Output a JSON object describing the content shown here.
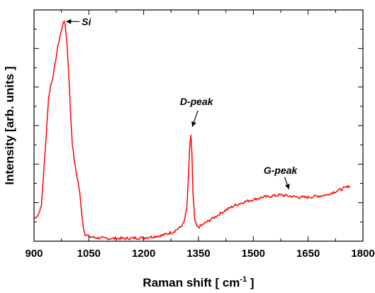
{
  "chart_data": {
    "type": "line",
    "xlabel": "Raman shift [ cm",
    "xlabel_sup": "-1",
    "xlabel_end": " ]",
    "ylabel": "Intensity [arb. units ]",
    "xlim": [
      900,
      1800
    ],
    "ylim": [
      0,
      1
    ],
    "x_ticks": [
      900,
      1050,
      1200,
      1350,
      1500,
      1650,
      1800
    ],
    "y_ticks_shown": false,
    "line_color": "#ff0000",
    "series": [
      {
        "x": [
          900,
          910,
          920,
          930,
          940,
          945,
          950,
          955,
          960,
          965,
          970,
          975,
          980,
          985,
          990,
          995,
          1000,
          1005,
          1010,
          1015,
          1020,
          1025,
          1030,
          1035,
          1040,
          1045,
          1050,
          1070,
          1100,
          1150,
          1200,
          1250,
          1280,
          1300,
          1310,
          1318,
          1322,
          1326,
          1329,
          1332,
          1335,
          1340,
          1345,
          1350,
          1360,
          1375,
          1400,
          1425,
          1450,
          1475,
          1500,
          1525,
          1550,
          1575,
          1600,
          1625,
          1650,
          1675,
          1700,
          1725,
          1750,
          1765
        ],
        "y": [
          0.1,
          0.11,
          0.15,
          0.38,
          0.62,
          0.67,
          0.7,
          0.74,
          0.79,
          0.84,
          0.88,
          0.91,
          0.95,
          0.94,
          0.86,
          0.72,
          0.55,
          0.42,
          0.35,
          0.3,
          0.26,
          0.21,
          0.13,
          0.06,
          0.03,
          0.025,
          0.02,
          0.015,
          0.012,
          0.012,
          0.015,
          0.025,
          0.04,
          0.06,
          0.08,
          0.14,
          0.26,
          0.41,
          0.46,
          0.38,
          0.2,
          0.09,
          0.065,
          0.06,
          0.07,
          0.085,
          0.11,
          0.135,
          0.155,
          0.17,
          0.18,
          0.19,
          0.195,
          0.2,
          0.195,
          0.19,
          0.19,
          0.195,
          0.2,
          0.215,
          0.23,
          0.24
        ]
      }
    ],
    "annotations": [
      {
        "text": "Si",
        "x": 982,
        "y": 0.95
      },
      {
        "text": "D-peak",
        "x": 1329,
        "y": 0.47
      },
      {
        "text": "G-peak",
        "x": 1582,
        "y": 0.2
      }
    ]
  }
}
